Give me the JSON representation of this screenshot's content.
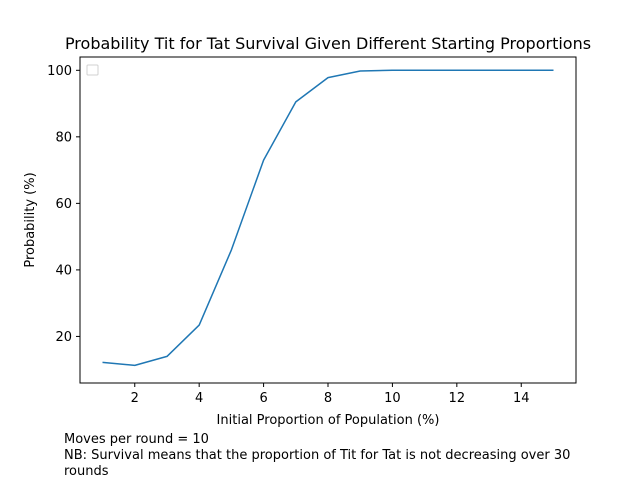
{
  "chart_data": {
    "type": "line",
    "title": "Probability Tit for Tat Survival Given Different Starting Proportions",
    "xlabel": "Initial Proportion of Population (%)",
    "ylabel": "Probability (%)",
    "xlim": [
      0.3,
      15.7
    ],
    "ylim": [
      6,
      104
    ],
    "xticks": [
      2,
      4,
      6,
      8,
      10,
      12,
      14
    ],
    "yticks": [
      20,
      40,
      60,
      80,
      100
    ],
    "grid": false,
    "legend": "top-left",
    "series": [
      {
        "color": "#1f77b4",
        "x": [
          1,
          2,
          3,
          4,
          5,
          6,
          7,
          8,
          9,
          10,
          11,
          12,
          13,
          14,
          15
        ],
        "y": [
          12.2,
          11.3,
          14.0,
          23.4,
          46.0,
          73.0,
          90.5,
          97.8,
          99.8,
          100.0,
          100.0,
          100.0,
          100.0,
          100.0,
          100.0
        ]
      }
    ]
  },
  "notes": {
    "line1": "Moves per round = 10",
    "line2": "NB: Survival means that the proportion of Tit for Tat is not decreasing over 30",
    "line3": "rounds"
  }
}
